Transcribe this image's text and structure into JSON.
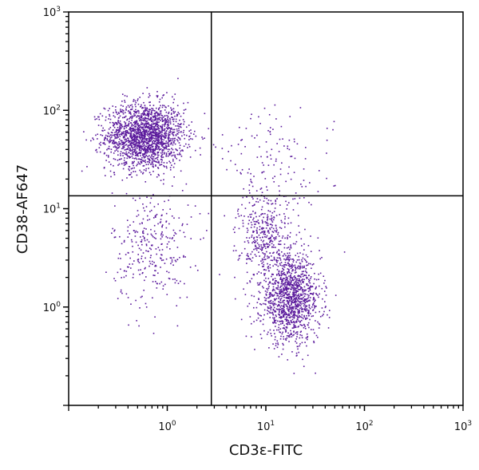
{
  "chart_data": {
    "type": "scatter",
    "title": "",
    "xlabel": "CD3ε-FITC",
    "ylabel": "CD38-AF647",
    "x_scale": "log",
    "y_scale": "log",
    "xlim": [
      0.1,
      1000
    ],
    "ylim": [
      0.1,
      1000
    ],
    "x_ticks": [
      {
        "value": 1,
        "base": "10",
        "exp": "0"
      },
      {
        "value": 10,
        "base": "10",
        "exp": "1"
      },
      {
        "value": 100,
        "base": "10",
        "exp": "2"
      },
      {
        "value": 1000,
        "base": "10",
        "exp": "3"
      }
    ],
    "y_ticks": [
      {
        "value": 1,
        "base": "10",
        "exp": "0"
      },
      {
        "value": 10,
        "base": "10",
        "exp": "1"
      },
      {
        "value": 100,
        "base": "10",
        "exp": "2"
      },
      {
        "value": 1000,
        "base": "10",
        "exp": "3"
      }
    ],
    "grid": false,
    "quadrant_gates": {
      "x": 2.8,
      "y": 13.5
    },
    "point_color": "#5b1a9c",
    "populations": [
      {
        "quadrant": "upper-left",
        "x_center": 0.6,
        "y_center": 55,
        "x_spread_decades": 0.2,
        "y_spread_decades": 0.17,
        "count": 1800
      },
      {
        "quadrant": "lower-left",
        "x_center": 0.7,
        "y_center": 4,
        "x_spread_decades": 0.2,
        "y_spread_decades": 0.3,
        "count": 300
      },
      {
        "quadrant": "lower-right",
        "x_center": 18,
        "y_center": 1.2,
        "x_spread_decades": 0.15,
        "y_spread_decades": 0.22,
        "count": 1200
      },
      {
        "quadrant": "lower-right",
        "x_center": 10,
        "y_center": 5,
        "x_spread_decades": 0.13,
        "y_spread_decades": 0.25,
        "count": 400
      },
      {
        "quadrant": "upper-right",
        "x_center": 12,
        "y_center": 25,
        "x_spread_decades": 0.3,
        "y_spread_decades": 0.3,
        "count": 150
      }
    ]
  }
}
